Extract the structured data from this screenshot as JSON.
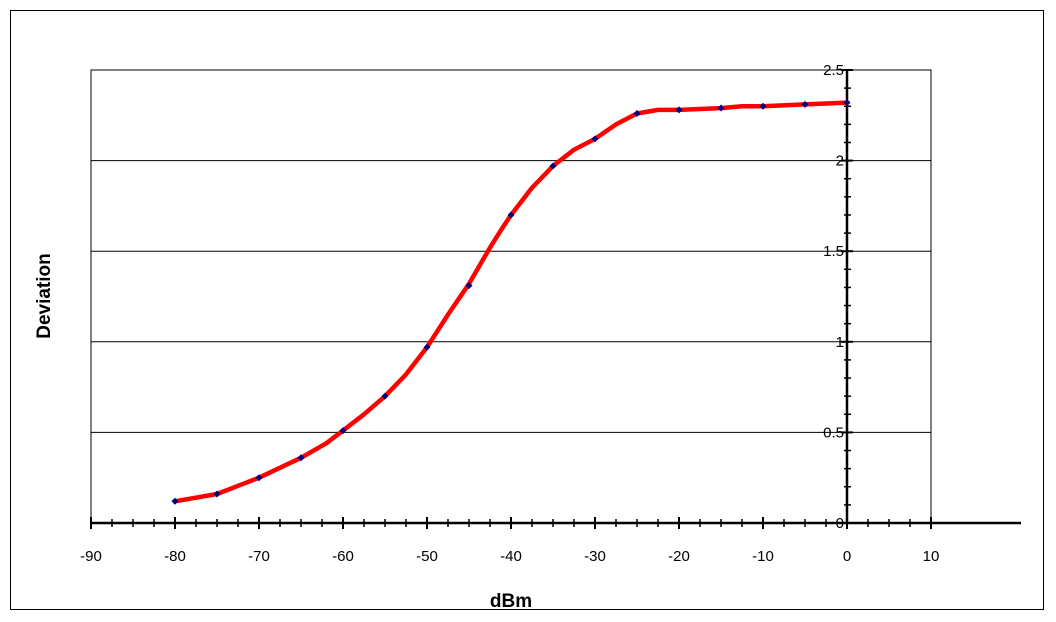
{
  "chart_data": {
    "type": "line",
    "title": "",
    "xlabel": "dBm",
    "ylabel": "Deviation",
    "xlim": [
      -90,
      10
    ],
    "ylim": [
      0,
      2.5
    ],
    "x_ticks": [
      -90,
      -80,
      -70,
      -60,
      -50,
      -40,
      -30,
      -20,
      -10,
      0,
      10
    ],
    "y_ticks": [
      0,
      0.5,
      1,
      1.5,
      2,
      2.5
    ],
    "y_tick_labels": [
      "0",
      "0.5",
      "1",
      "1.5",
      "2",
      "2.5"
    ],
    "grid": "horizontal",
    "legend": "none",
    "colors": {
      "line": "#ff0000",
      "markers": "#000080",
      "grid": "#000000"
    },
    "series": [
      {
        "name": "",
        "line_x": [
          -80,
          -75,
          -70,
          -65,
          -62,
          -60,
          -57.5,
          -55,
          -52.5,
          -50,
          -47.5,
          -45,
          -42.5,
          -41,
          -40,
          -37.5,
          -35,
          -32.5,
          -30,
          -27.5,
          -25,
          -22.5,
          -20,
          -15,
          -12.5,
          -10,
          -5,
          0
        ],
        "line_y": [
          0.12,
          0.16,
          0.25,
          0.36,
          0.44,
          0.51,
          0.6,
          0.7,
          0.82,
          0.97,
          1.15,
          1.32,
          1.52,
          1.63,
          1.7,
          1.85,
          1.97,
          2.06,
          2.12,
          2.2,
          2.26,
          2.28,
          2.28,
          2.29,
          2.3,
          2.3,
          2.31,
          2.32
        ],
        "marker_x": [
          -80,
          -75,
          -70,
          -65,
          -60,
          -55,
          -50,
          -45,
          -40,
          -35,
          -30,
          -25,
          -20,
          -15,
          -10,
          -5,
          0
        ],
        "marker_y": [
          0.12,
          0.16,
          0.25,
          0.36,
          0.51,
          0.7,
          0.97,
          1.31,
          1.7,
          1.97,
          2.12,
          2.26,
          2.28,
          2.29,
          2.3,
          2.31,
          2.32
        ]
      }
    ]
  }
}
